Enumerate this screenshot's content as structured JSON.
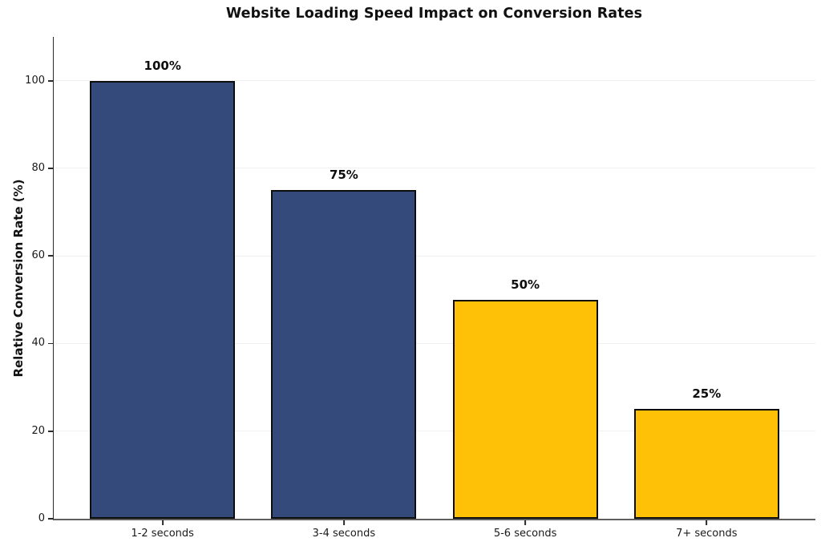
{
  "chart_data": {
    "type": "bar",
    "title": "Website Loading Speed Impact on Conversion Rates",
    "xlabel": "",
    "ylabel": "Relative Conversion Rate (%)",
    "categories": [
      "1-2 seconds",
      "3-4 seconds",
      "5-6 seconds",
      "7+ seconds"
    ],
    "values": [
      100,
      75,
      50,
      25
    ],
    "value_labels": [
      "100%",
      "75%",
      "50%",
      "25%"
    ],
    "bar_colors": [
      "#344A7B",
      "#344A7B",
      "#FFC107",
      "#FFC107"
    ],
    "bar_edge_color": "#0d0d0d",
    "ylim": [
      0,
      110
    ],
    "yticks": [
      0,
      20,
      40,
      60,
      80,
      100
    ],
    "xlim": [
      -0.6,
      3.6
    ],
    "bar_width_units": 0.8,
    "grid": true,
    "grid_color": "#f0f0f0",
    "legend": "none",
    "background_color": "#ffffff"
  }
}
